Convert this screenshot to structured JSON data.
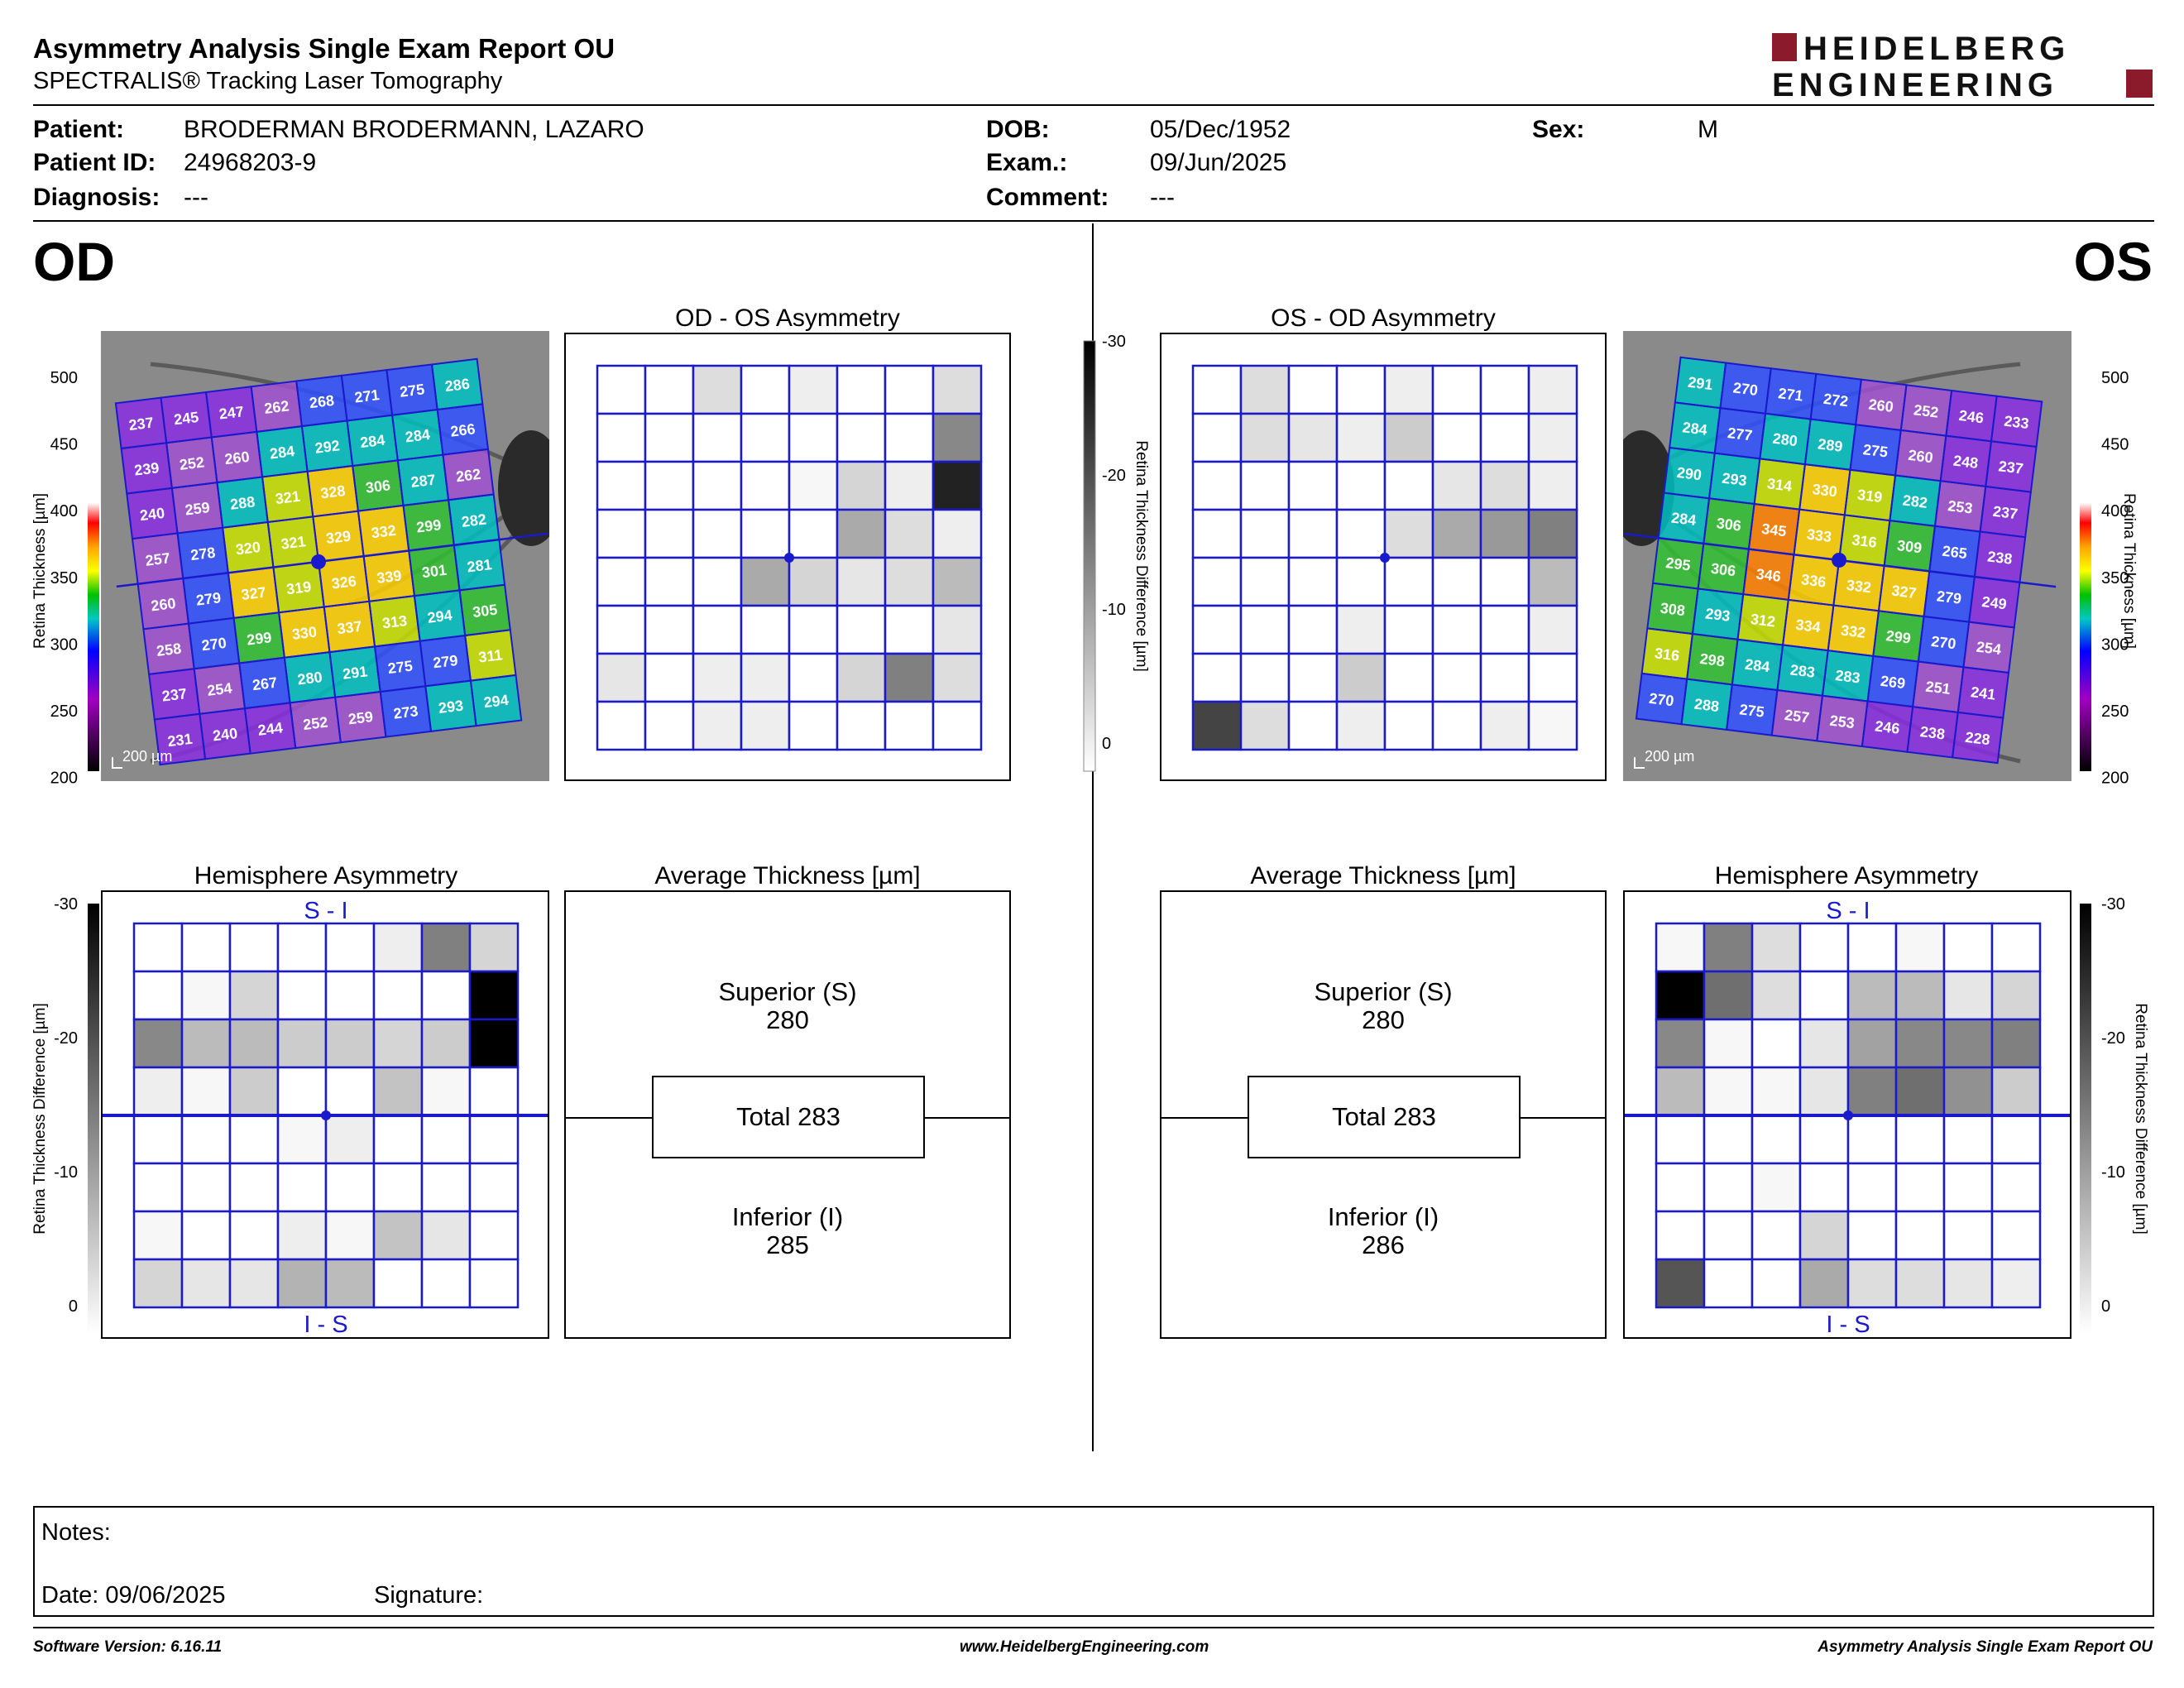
{
  "header": {
    "title": "Asymmetry Analysis Single Exam Report OU",
    "subtitle": "SPECTRALIS® Tracking Laser Tomography",
    "logo_line1": "HEIDELBERG",
    "logo_line2": "ENGINEERING"
  },
  "patient": {
    "patient_label": "Patient:",
    "patient_value": "BRODERMAN BRODERMANN, LAZARO",
    "id_label": "Patient ID:",
    "id_value": "24968203-9",
    "diagnosis_label": "Diagnosis:",
    "diagnosis_value": "---",
    "dob_label": "DOB:",
    "dob_value": "05/Dec/1952",
    "exam_label": "Exam.:",
    "exam_value": "09/Jun/2025",
    "comment_label": "Comment:",
    "comment_value": "---",
    "sex_label": "Sex:",
    "sex_value": "M"
  },
  "eyes": {
    "left_label": "OD",
    "right_label": "OS"
  },
  "panels": {
    "od_os_asym_title": "OD - OS Asymmetry",
    "os_od_asym_title": "OS - OD Asymmetry",
    "hemi_title": "Hemisphere Asymmetry",
    "avg_title": "Average Thickness [µm]",
    "si_label": "S - I",
    "is_label": "I - S",
    "scale_label": "200 µm"
  },
  "scales": {
    "thickness_label": "Retina Thickness [µm]",
    "thickness_ticks": [
      "500",
      "450",
      "400",
      "350",
      "300",
      "250",
      "200"
    ],
    "diff_label": "Retina Thickness Difference [µm]",
    "diff_ticks": [
      "-30",
      "-20",
      "-10",
      "0"
    ]
  },
  "od": {
    "thickness_grid": [
      [
        237,
        245,
        247,
        262,
        268,
        271,
        275,
        286
      ],
      [
        239,
        252,
        260,
        284,
        292,
        284,
        284,
        266
      ],
      [
        240,
        259,
        288,
        321,
        328,
        306,
        287,
        262
      ],
      [
        257,
        278,
        320,
        321,
        329,
        332,
        299,
        282
      ],
      [
        260,
        279,
        327,
        319,
        326,
        339,
        301,
        281
      ],
      [
        258,
        270,
        299,
        330,
        337,
        313,
        294,
        305
      ],
      [
        237,
        254,
        267,
        280,
        291,
        275,
        279,
        311
      ],
      [
        231,
        240,
        244,
        252,
        259,
        273,
        293,
        294
      ]
    ],
    "asym_grid": [
      [
        0,
        0,
        4,
        0,
        2,
        0,
        0,
        4
      ],
      [
        0,
        0,
        0,
        0,
        0,
        0,
        0,
        14
      ],
      [
        0,
        0,
        0,
        0,
        1,
        5,
        2,
        26
      ],
      [
        0,
        0,
        0,
        0,
        0,
        10,
        4,
        2
      ],
      [
        0,
        0,
        0,
        10,
        5,
        3,
        4,
        8
      ],
      [
        0,
        0,
        0,
        0,
        0,
        0,
        0,
        3
      ],
      [
        3,
        0,
        2,
        2,
        0,
        5,
        15,
        4
      ],
      [
        0,
        0,
        2,
        2,
        0,
        0,
        0,
        0
      ]
    ],
    "hemi_grid": [
      [
        0,
        0,
        0,
        0,
        0,
        2,
        15,
        5
      ],
      [
        0,
        1,
        5,
        0,
        0,
        0,
        0,
        30
      ],
      [
        14,
        8,
        8,
        6,
        6,
        5,
        6,
        30
      ],
      [
        2,
        1,
        6,
        0,
        0,
        7,
        1,
        0
      ],
      [
        0,
        0,
        0,
        1,
        2,
        0,
        0,
        0
      ],
      [
        0,
        0,
        0,
        0,
        0,
        0,
        0,
        0
      ],
      [
        1,
        0,
        0,
        2,
        1,
        7,
        3,
        0
      ],
      [
        5,
        3,
        3,
        9,
        8,
        0,
        0,
        0
      ]
    ],
    "avg_superior_label": "Superior (S)",
    "avg_superior": "280",
    "avg_total": "Total 283",
    "avg_inferior_label": "Inferior (I)",
    "avg_inferior": "285"
  },
  "os": {
    "thickness_grid": [
      [
        291,
        270,
        271,
        272,
        260,
        252,
        246,
        233
      ],
      [
        284,
        277,
        280,
        289,
        275,
        260,
        248,
        237
      ],
      [
        290,
        293,
        314,
        330,
        319,
        282,
        253,
        237
      ],
      [
        284,
        306,
        345,
        333,
        316,
        309,
        265,
        238
      ],
      [
        295,
        306,
        346,
        336,
        332,
        327,
        279,
        249
      ],
      [
        308,
        293,
        312,
        334,
        332,
        299,
        270,
        254
      ],
      [
        316,
        298,
        284,
        283,
        283,
        269,
        251,
        241
      ],
      [
        270,
        288,
        275,
        257,
        253,
        246,
        238,
        228
      ]
    ],
    "asym_grid": [
      [
        0,
        4,
        0,
        0,
        2,
        0,
        0,
        2
      ],
      [
        0,
        4,
        3,
        2,
        6,
        0,
        0,
        2
      ],
      [
        0,
        0,
        0,
        0,
        0,
        3,
        4,
        2
      ],
      [
        0,
        0,
        0,
        0,
        4,
        10,
        12,
        15
      ],
      [
        0,
        0,
        0,
        0,
        0,
        0,
        0,
        8
      ],
      [
        0,
        0,
        0,
        2,
        0,
        0,
        0,
        2
      ],
      [
        0,
        0,
        0,
        6,
        0,
        0,
        0,
        0
      ],
      [
        22,
        4,
        0,
        2,
        0,
        0,
        2,
        1
      ]
    ],
    "hemi_grid": [
      [
        1,
        15,
        4,
        0,
        0,
        1,
        0,
        0
      ],
      [
        30,
        17,
        4,
        0,
        8,
        8,
        3,
        5
      ],
      [
        14,
        1,
        0,
        3,
        11,
        14,
        14,
        15
      ],
      [
        8,
        1,
        1,
        3,
        15,
        17,
        13,
        6
      ],
      [
        0,
        0,
        0,
        0,
        0,
        0,
        0,
        0
      ],
      [
        0,
        0,
        1,
        0,
        0,
        0,
        0,
        0
      ],
      [
        0,
        0,
        0,
        5,
        0,
        0,
        0,
        0
      ],
      [
        20,
        0,
        0,
        10,
        4,
        4,
        3,
        2
      ]
    ],
    "avg_superior_label": "Superior (S)",
    "avg_superior": "280",
    "avg_total": "Total 283",
    "avg_inferior_label": "Inferior (I)",
    "avg_inferior": "286"
  },
  "notes": {
    "notes_label": "Notes:",
    "date_label": "Date: 09/06/2025",
    "signature_label": "Signature:"
  },
  "footer": {
    "software": "Software Version: 6.16.11",
    "website": "www.HeidelbergEngineering.com",
    "report": "Asymmetry Analysis Single Exam Report OU"
  },
  "colors": {
    "grid_blue": "#1a1acc",
    "logo_red": "#8b1a2b"
  }
}
